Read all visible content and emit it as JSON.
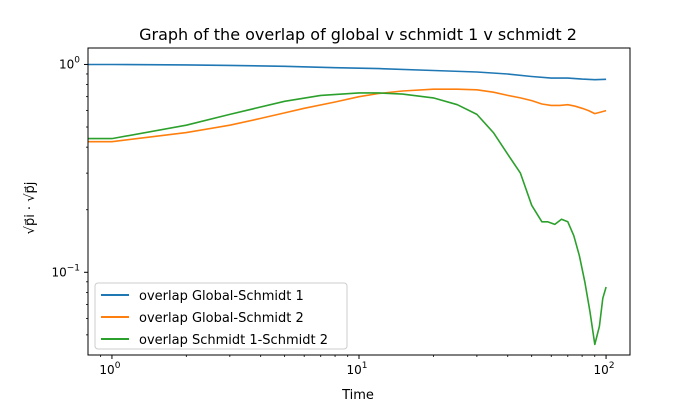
{
  "chart_data": {
    "type": "line",
    "title": "Graph of the overlap of global v schmidt 1 v schmidt 2",
    "xlabel": "Time",
    "ylabel": "√p⃗i · √p⃗j",
    "xscale": "log",
    "yscale": "log",
    "xlim": [
      0.8,
      125
    ],
    "ylim": [
      0.04,
      1.2
    ],
    "xticks": [
      {
        "value": 1,
        "base": "10",
        "exp": "0"
      },
      {
        "value": 10,
        "base": "10",
        "exp": "1"
      },
      {
        "value": 100,
        "base": "10",
        "exp": "2"
      }
    ],
    "yticks": [
      {
        "value": 0.1,
        "base": "10",
        "exp": "−1"
      },
      {
        "value": 1,
        "base": "10",
        "exp": "0"
      }
    ],
    "legend_position": "lower-left",
    "grid": false,
    "series": [
      {
        "name": "overlap Global-Schmidt 1",
        "color": "#1f77b4",
        "x": [
          0.8,
          1,
          2,
          3,
          5,
          8,
          12,
          20,
          30,
          40,
          50,
          60,
          70,
          80,
          90,
          100
        ],
        "y": [
          1.0,
          1.0,
          0.995,
          0.99,
          0.98,
          0.965,
          0.955,
          0.935,
          0.92,
          0.9,
          0.875,
          0.86,
          0.86,
          0.85,
          0.845,
          0.848
        ]
      },
      {
        "name": "overlap Global-Schmidt 2",
        "color": "#ff7f0e",
        "x": [
          0.8,
          1,
          2,
          3,
          4,
          5,
          6,
          8,
          10,
          12,
          15,
          20,
          25,
          30,
          35,
          40,
          45,
          50,
          55,
          60,
          65,
          70,
          75,
          80,
          85,
          90,
          95,
          100
        ],
        "y": [
          0.425,
          0.425,
          0.47,
          0.51,
          0.55,
          0.585,
          0.615,
          0.66,
          0.7,
          0.725,
          0.745,
          0.76,
          0.76,
          0.755,
          0.735,
          0.71,
          0.69,
          0.67,
          0.645,
          0.635,
          0.635,
          0.64,
          0.63,
          0.615,
          0.6,
          0.58,
          0.59,
          0.6
        ]
      },
      {
        "name": "overlap Schmidt 1-Schmidt 2",
        "color": "#2ca02c",
        "x": [
          0.8,
          1,
          2,
          3,
          5,
          7,
          10,
          12,
          15,
          20,
          25,
          30,
          35,
          40,
          45,
          50,
          55,
          58,
          62,
          66,
          70,
          74,
          78,
          82,
          86,
          90,
          94,
          97,
          100
        ],
        "y": [
          0.44,
          0.44,
          0.51,
          0.575,
          0.665,
          0.71,
          0.73,
          0.73,
          0.72,
          0.69,
          0.64,
          0.575,
          0.47,
          0.37,
          0.3,
          0.21,
          0.175,
          0.175,
          0.17,
          0.18,
          0.175,
          0.15,
          0.12,
          0.09,
          0.065,
          0.045,
          0.055,
          0.075,
          0.085
        ]
      }
    ]
  }
}
